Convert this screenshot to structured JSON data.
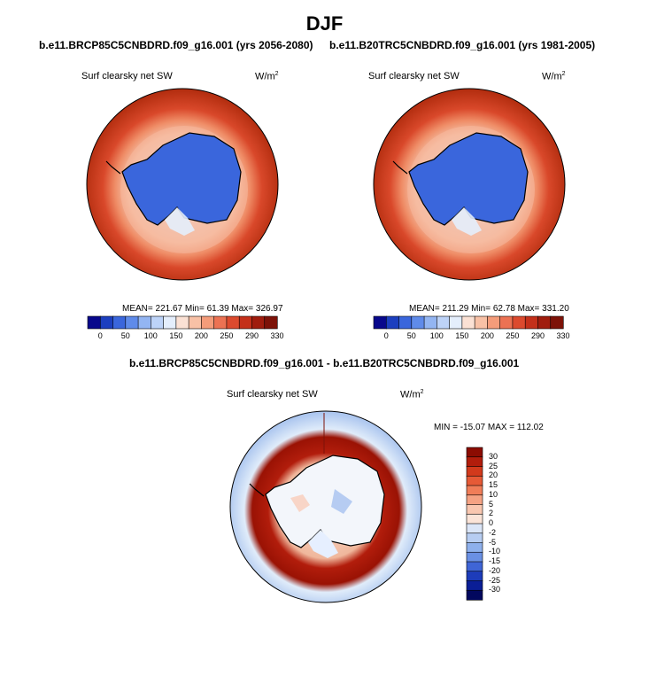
{
  "figure": {
    "season": "DJF",
    "diff_title": "b.e11.BRCP85C5CNBDRD.f09_g16.001 - b.e11.B20TRC5CNBDRD.f09_g16.001"
  },
  "colors": {
    "antarctica": "#3a66dc",
    "ocean_warm": "#b82f10",
    "ring_light": "#f6b79c",
    "diff_high": "#a11405",
    "diff_low": "#a8c3ee"
  },
  "panels": [
    {
      "title": "b.e11.BRCP85C5CNBDRD.f09_g16.001 (yrs 2056-2080)",
      "variable": "Surf clearsky net SW",
      "units": "W/m",
      "units_exp": "2",
      "stats_text": "MEAN= 221.67  Min=  61.39  Max= 326.97",
      "mean": 221.67,
      "min": 61.39,
      "max": 326.97
    },
    {
      "title": "b.e11.B20TRC5CNBDRD.f09_g16.001 (yrs 1981-2005)",
      "variable": "Surf clearsky net SW",
      "units": "W/m",
      "units_exp": "2",
      "stats_text": "MEAN= 211.29  Min=  62.78  Max= 331.20",
      "mean": 211.29,
      "min": 62.78,
      "max": 331.2
    }
  ],
  "diff_panel": {
    "variable": "Surf clearsky net SW",
    "units": "W/m",
    "units_exp": "2",
    "stats_text": "MIN = -15.07 MAX = 112.02",
    "min": -15.07,
    "max": 112.02
  },
  "chart_data": [
    {
      "type": "heatmap",
      "title": "b.e11.BRCP85C5CNBDRD.f09_g16.001 (yrs 2056-2080)",
      "subtitle": "Surf clearsky net SW",
      "projection": "south polar stereographic",
      "colorbar_labels": [
        "0",
        "50",
        "100",
        "150",
        "200",
        "250",
        "290",
        "330"
      ],
      "colorbar_colors": [
        "#08088c",
        "#1c3fbf",
        "#3a66dc",
        "#5f8bea",
        "#93b5f2",
        "#bdd3f8",
        "#e4eefc",
        "#fbe1d4",
        "#f8c1a6",
        "#f49c7a",
        "#ec7253",
        "#dc4a2e",
        "#c4301a",
        "#a01d0e",
        "#7d1208"
      ],
      "stats": {
        "mean": 221.67,
        "min": 61.39,
        "max": 326.97
      },
      "units": "W/m2"
    },
    {
      "type": "heatmap",
      "title": "b.e11.B20TRC5CNBDRD.f09_g16.001 (yrs 1981-2005)",
      "subtitle": "Surf clearsky net SW",
      "projection": "south polar stereographic",
      "colorbar_labels": [
        "0",
        "50",
        "100",
        "150",
        "200",
        "250",
        "290",
        "330"
      ],
      "colorbar_colors": [
        "#08088c",
        "#1c3fbf",
        "#3a66dc",
        "#5f8bea",
        "#93b5f2",
        "#bdd3f8",
        "#e4eefc",
        "#fbe1d4",
        "#f8c1a6",
        "#f49c7a",
        "#ec7253",
        "#dc4a2e",
        "#c4301a",
        "#a01d0e",
        "#7d1208"
      ],
      "stats": {
        "mean": 211.29,
        "min": 62.78,
        "max": 331.2
      },
      "units": "W/m2"
    },
    {
      "type": "heatmap",
      "title": "b.e11.BRCP85C5CNBDRD.f09_g16.001 - b.e11.B20TRC5CNBDRD.f09_g16.001",
      "subtitle": "Surf clearsky net SW",
      "projection": "south polar stereographic",
      "colorbar_labels": [
        "30",
        "25",
        "20",
        "15",
        "10",
        "5",
        "2",
        "0",
        "-2",
        "-5",
        "-10",
        "-15",
        "-20",
        "-25",
        "-30"
      ],
      "colorbar_colors": [
        "#8c0c02",
        "#b21d0c",
        "#d23a1c",
        "#e65a36",
        "#f07d58",
        "#f5a283",
        "#f9c7b0",
        "#fbe4d8",
        "#dbe6f8",
        "#b7cdf2",
        "#8eb0ec",
        "#6a90e4",
        "#3f65d6",
        "#1d3cba",
        "#0a1e96",
        "#02085e"
      ],
      "stats": {
        "min": -15.07,
        "max": 112.02
      },
      "units": "W/m2"
    }
  ]
}
